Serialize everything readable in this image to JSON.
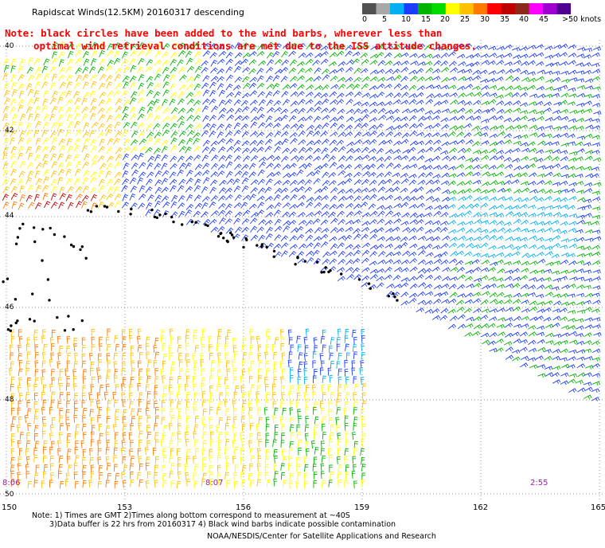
{
  "title": "Rapidscat Winds(12.5KM) 20160317 descending",
  "note_line1": "Note: black circles have been added to the wind barbs, wherever less than",
  "note_line2": "optimal wind retrieval conditions are met due to the ISS attitude changes.",
  "color_scale": {
    "labels": [
      "0",
      "5",
      "10",
      "15",
      "20",
      "25",
      "30",
      "35",
      "40",
      "45",
      ">50 knots"
    ],
    "colors": [
      "#505050",
      "#a8a8a8",
      "#00b0f0",
      "#1c3cff",
      "#00b400",
      "#00dc00",
      "#ffff00",
      "#ffc000",
      "#ff7800",
      "#ff0000",
      "#c00000",
      "#8c2a1a",
      "#ff00ff",
      "#a000d0",
      "#500090"
    ]
  },
  "latitude_labels": [
    "40",
    "42",
    "44",
    "46",
    "48",
    "50"
  ],
  "longitude_labels": [
    "150",
    "153",
    "156",
    "159",
    "162",
    "165"
  ],
  "time_labels": [
    "8:06",
    "8:07",
    "2:55"
  ],
  "footnote_line1": "Note: 1) Times are GMT 2)Times along bottom correspond to measurement at ~40S",
  "footnote_line2": "3)Data buffer is 22 hrs from 20160317 4) Black wind barbs indicate possible contamination",
  "credit": "NOAA/NESDIS/Center for Satellite Applications and Research"
}
